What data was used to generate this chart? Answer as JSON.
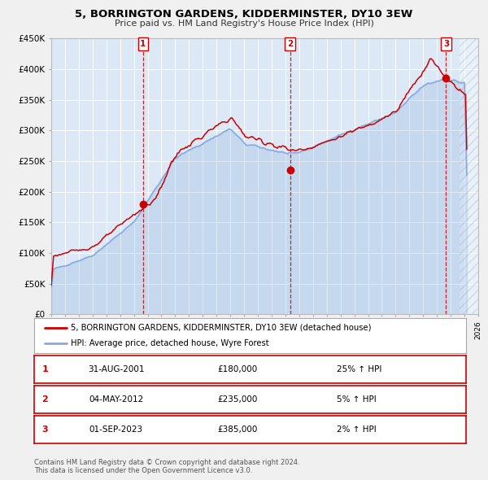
{
  "title": "5, BORRINGTON GARDENS, KIDDERMINSTER, DY10 3EW",
  "subtitle": "Price paid vs. HM Land Registry's House Price Index (HPI)",
  "ylim": [
    0,
    450000
  ],
  "xlim_start": 1995.0,
  "xlim_end": 2026.0,
  "fig_bg_color": "#f0f0f0",
  "plot_bg_color": "#dce8f5",
  "grid_color": "#ffffff",
  "sale_color": "#cc0000",
  "hpi_color": "#88aadd",
  "hpi_fill_color": "#c8d8ee",
  "sale_label": "5, BORRINGTON GARDENS, KIDDERMINSTER, DY10 3EW (detached house)",
  "hpi_label": "HPI: Average price, detached house, Wyre Forest",
  "sale_positions": [
    [
      2001.664,
      180000,
      "1"
    ],
    [
      2012.336,
      235000,
      "2"
    ],
    [
      2023.664,
      385000,
      "3"
    ]
  ],
  "table_rows": [
    {
      "num": "1",
      "date": "31-AUG-2001",
      "price": "£180,000",
      "change": "25% ↑ HPI"
    },
    {
      "num": "2",
      "date": "04-MAY-2012",
      "price": "£235,000",
      "change": "5% ↑ HPI"
    },
    {
      "num": "3",
      "date": "01-SEP-2023",
      "price": "£385,000",
      "change": "2% ↑ HPI"
    }
  ],
  "footer": "Contains HM Land Registry data © Crown copyright and database right 2024.\nThis data is licensed under the Open Government Licence v3.0.",
  "yticks": [
    0,
    50000,
    100000,
    150000,
    200000,
    250000,
    300000,
    350000,
    400000,
    450000
  ],
  "ytick_labels": [
    "£0",
    "£50K",
    "£100K",
    "£150K",
    "£200K",
    "£250K",
    "£300K",
    "£350K",
    "£400K",
    "£450K"
  ],
  "xticks": [
    1995,
    1996,
    1997,
    1998,
    1999,
    2000,
    2001,
    2002,
    2003,
    2004,
    2005,
    2006,
    2007,
    2008,
    2009,
    2010,
    2011,
    2012,
    2013,
    2014,
    2015,
    2016,
    2017,
    2018,
    2019,
    2020,
    2021,
    2022,
    2023,
    2024,
    2025,
    2026
  ],
  "hpi_seed": 42,
  "sale_seed": 123,
  "hatched_start": 2024.664
}
